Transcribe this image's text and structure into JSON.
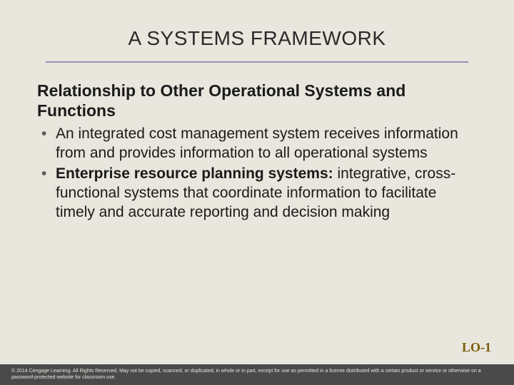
{
  "colors": {
    "background": "#e8e6dd",
    "title_underline": "#9a8fb3",
    "text": "#1a1a1a",
    "bullet": "#5a5a5a",
    "lo_color": "#7a5a0a",
    "footer_bg": "#4a4a4a",
    "footer_text": "#e8e6dd"
  },
  "title": "A SYSTEMS FRAMEWORK",
  "subhead": "Relationship to Other Operational Systems and Functions",
  "bullets": [
    {
      "text": "An integrated cost management system receives information from and provides information to all operational systems"
    },
    {
      "lead": "Enterprise resource planning systems:",
      "rest": " integrative, cross-functional systems that coordinate information to facilitate timely and accurate reporting and decision making"
    }
  ],
  "lo": "LO-1",
  "copyright": "© 2014 Cengage Learning. All Rights Reserved. May not be copied, scanned, or duplicated, in whole or in part, except for use as permitted in a license distributed with a certain product or service or otherwise on a password-protected website for classroom use."
}
